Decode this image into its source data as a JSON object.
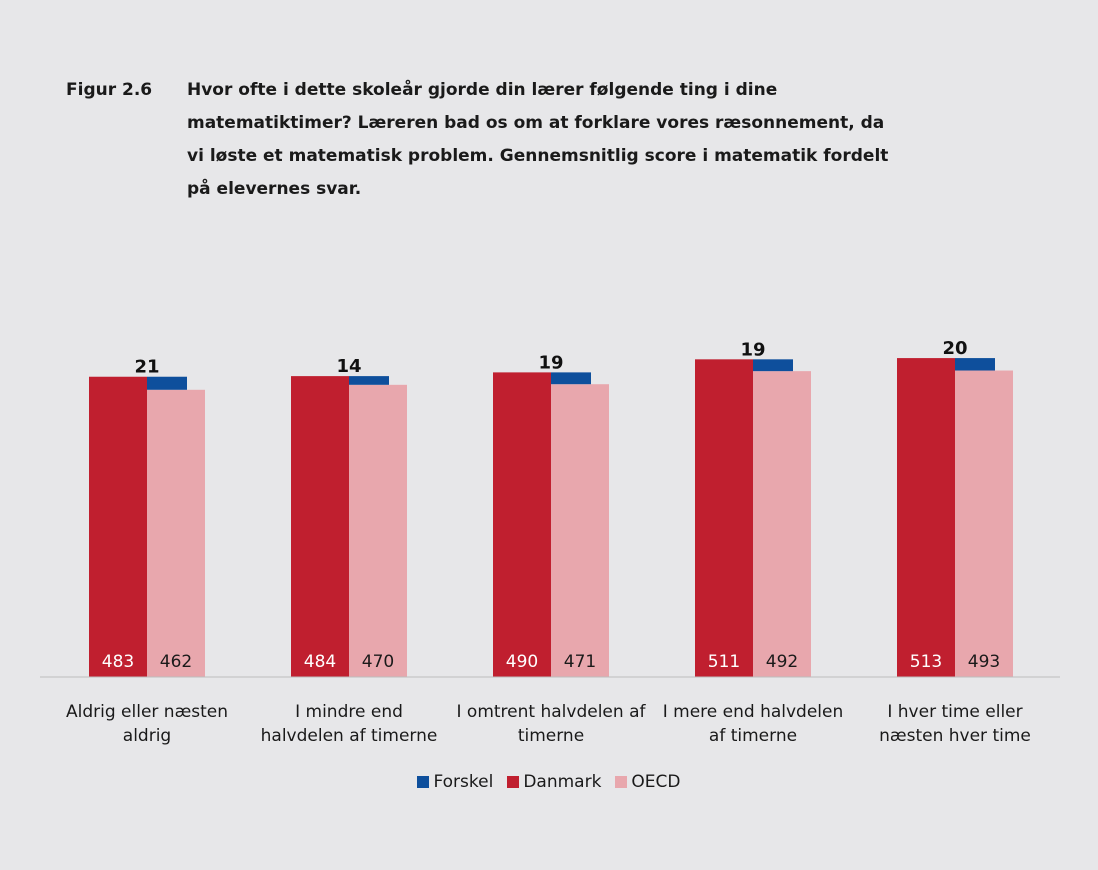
{
  "chart_data": {
    "type": "bar",
    "label": "Figur 2.6",
    "title": "Hvor ofte i dette skoleår gjorde din lærer følgende ting i dine matematiktimer? Læreren bad os om at forklare vores ræsonnement, da vi løste et matematisk problem. Gennemsnitlig score i matematik fordelt på elevernes svar.",
    "categories": [
      "Aldrig eller næsten aldrig",
      "I mindre end halvdelen af timerne",
      "I omtrent halvdelen af timerne",
      "I mere end halvdelen af timerne",
      "I hver time eller næsten hver time"
    ],
    "series": [
      {
        "name": "Forskel",
        "color": "#0e4f9c",
        "values": [
          21,
          14,
          19,
          19,
          20
        ]
      },
      {
        "name": "Danmark",
        "color": "#c01f2f",
        "values": [
          483,
          484,
          490,
          511,
          513
        ]
      },
      {
        "name": "OECD",
        "color": "#e8a7ad",
        "values": [
          462,
          470,
          471,
          492,
          493
        ]
      }
    ],
    "ylim": [
      0,
      600
    ]
  }
}
